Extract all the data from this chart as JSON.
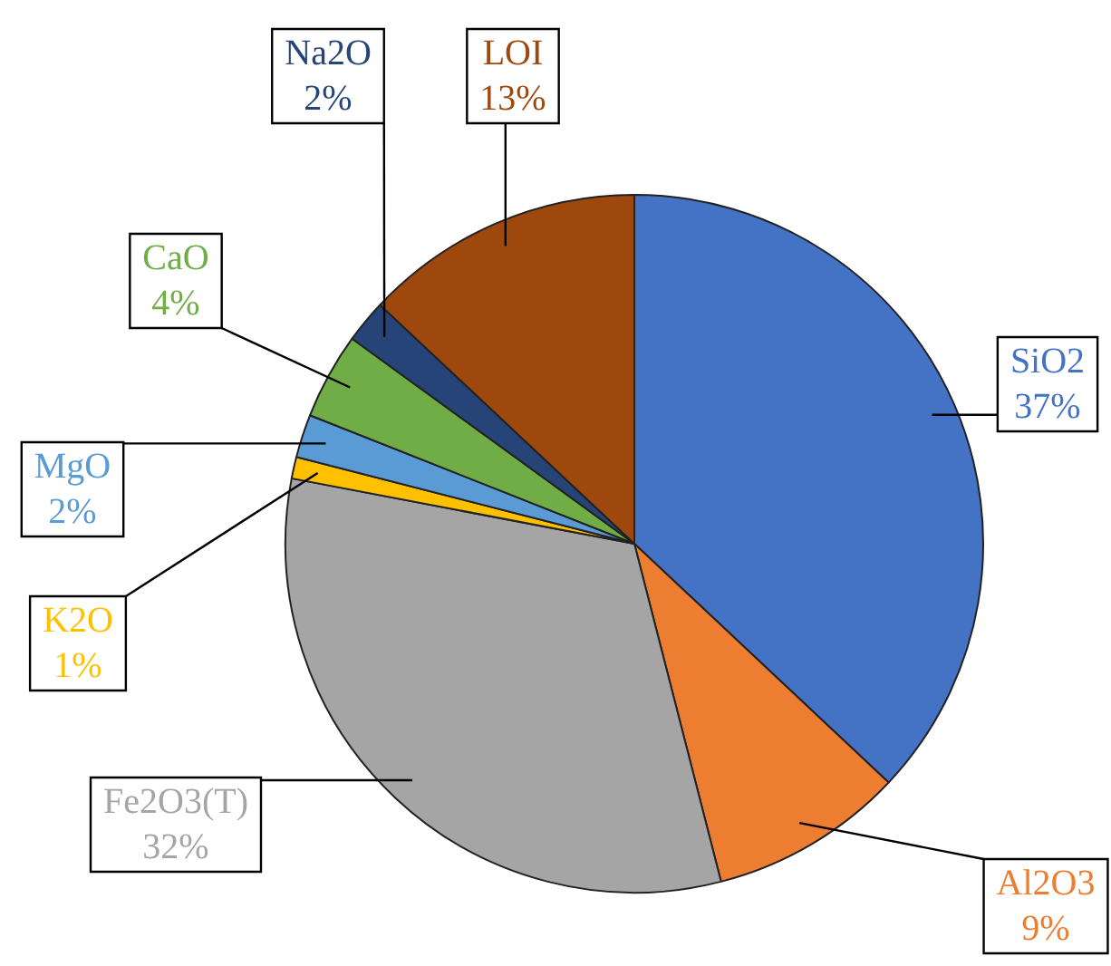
{
  "chart_data": {
    "type": "pie",
    "categories": [
      "SiO2",
      "Al2O3",
      "Fe2O3(T)",
      "K2O",
      "MgO",
      "CaO",
      "Na2O",
      "LOI"
    ],
    "values": [
      37,
      9,
      32,
      1,
      2,
      4,
      2,
      13
    ],
    "value_labels": [
      "37%",
      "9%",
      "32%",
      "1%",
      "2%",
      "4%",
      "2%",
      "13%"
    ],
    "colors": [
      "#4472c4",
      "#ed7d31",
      "#a5a5a5",
      "#ffc000",
      "#5b9bd5",
      "#70ad47",
      "#264478",
      "#9e480e"
    ],
    "legend": false
  }
}
